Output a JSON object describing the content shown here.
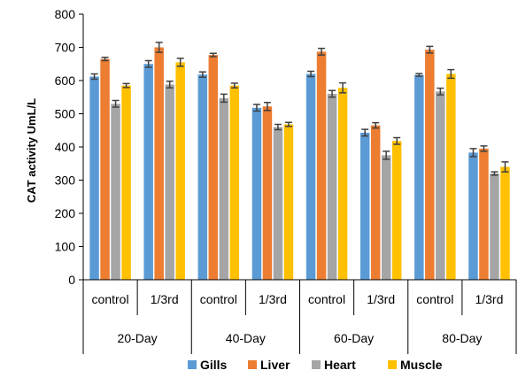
{
  "chart_data": {
    "type": "bar",
    "title": "",
    "xlabel": "",
    "ylabel": "CAT  activity UmL/L",
    "ylim": [
      0,
      800
    ],
    "yticks": [
      0,
      100,
      200,
      300,
      400,
      500,
      600,
      700,
      800
    ],
    "grid": false,
    "legend_position": "bottom",
    "categories": [
      "control",
      "1/3rd",
      "control",
      "1/3rd",
      "control",
      "1/3rd",
      "control",
      "1/3rd"
    ],
    "groups": [
      "20-Day",
      "40-Day",
      "60-Day",
      "80-Day"
    ],
    "series": [
      {
        "name": "Gills",
        "color": "#5B9BD5",
        "values": [
          612,
          650,
          618,
          518,
          620,
          443,
          617,
          383
        ],
        "errors": [
          8,
          10,
          8,
          10,
          8,
          10,
          4,
          12
        ]
      },
      {
        "name": "Liver",
        "color": "#ED7D31",
        "values": [
          665,
          700,
          677,
          522,
          687,
          465,
          693,
          395
        ],
        "errors": [
          5,
          15,
          5,
          12,
          10,
          8,
          10,
          8
        ]
      },
      {
        "name": "Heart",
        "color": "#A5A5A5",
        "values": [
          530,
          588,
          547,
          460,
          560,
          375,
          567,
          320
        ],
        "errors": [
          10,
          10,
          12,
          8,
          10,
          12,
          10,
          5
        ]
      },
      {
        "name": "Muscle",
        "color": "#FFC000",
        "values": [
          585,
          655,
          585,
          468,
          578,
          418,
          620,
          340
        ],
        "errors": [
          6,
          12,
          7,
          6,
          15,
          10,
          13,
          15
        ]
      }
    ]
  }
}
